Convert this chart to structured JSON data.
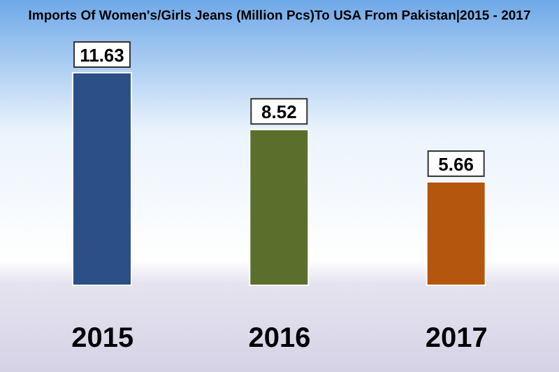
{
  "chart_data": {
    "type": "bar",
    "title": "Imports Of Women's/Girls Jeans (Million Pcs)To USA From Pakistan|2015 - 2017",
    "categories": [
      "2015",
      "2016",
      "2017"
    ],
    "values": [
      11.63,
      8.52,
      5.66
    ],
    "colors": [
      "#2b4f86",
      "#5b6f2c",
      "#b5560f"
    ],
    "data_labels": true
  }
}
